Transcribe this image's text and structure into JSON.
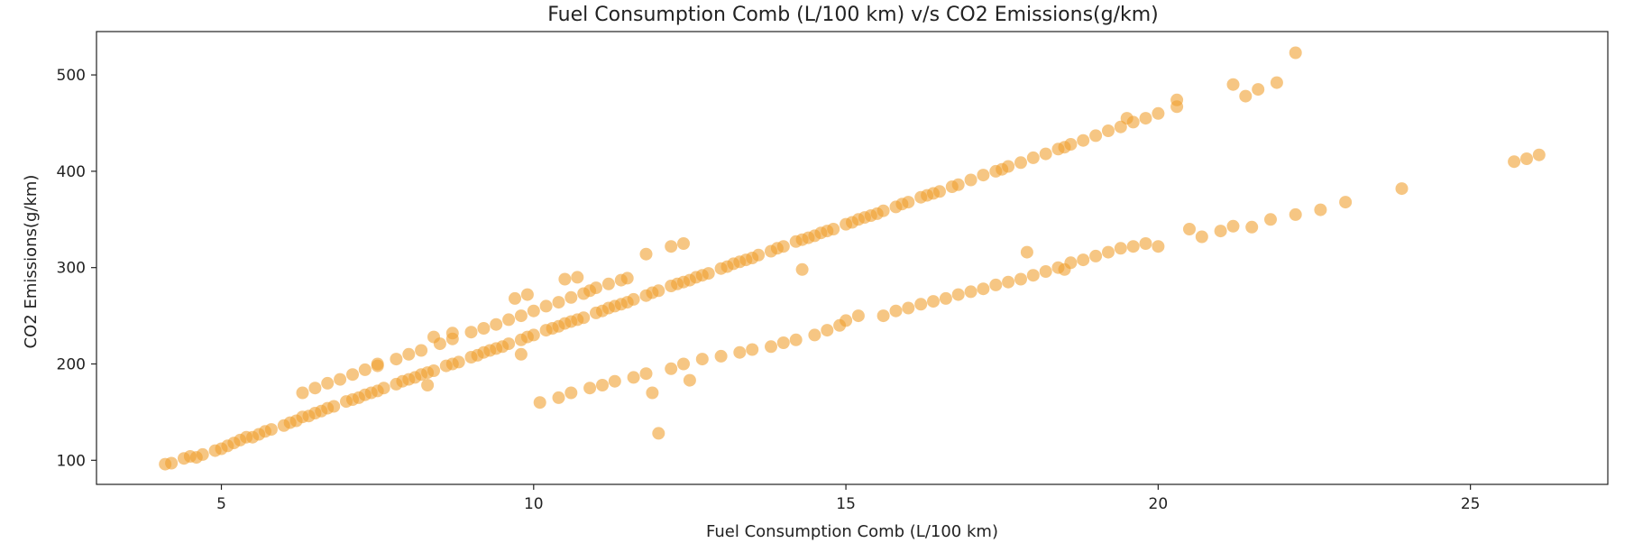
{
  "chart_data": {
    "type": "scatter",
    "title": "Fuel Consumption Comb (L/100 km) v/s CO2 Emissions(g/km)",
    "xlabel": "Fuel Consumption Comb (L/100 km)",
    "ylabel": "CO2 Emissions(g/km)",
    "xlim": [
      3,
      27.2
    ],
    "ylim": [
      75,
      545
    ],
    "xticks": [
      5,
      10,
      15,
      20,
      25
    ],
    "yticks": [
      100,
      200,
      300,
      400,
      500
    ],
    "grid": false,
    "legend": "none",
    "marker_color": "#f0a030",
    "marker_alpha": 0.6,
    "series": [
      {
        "points": [
          [
            4.1,
            96
          ],
          [
            4.2,
            97
          ],
          [
            4.4,
            102
          ],
          [
            4.5,
            104
          ],
          [
            4.7,
            106
          ],
          [
            4.9,
            110
          ],
          [
            5.0,
            112
          ],
          [
            5.1,
            115
          ],
          [
            5.2,
            118
          ],
          [
            5.3,
            121
          ],
          [
            5.5,
            124
          ],
          [
            5.6,
            127
          ],
          [
            5.7,
            130
          ],
          [
            5.8,
            132
          ],
          [
            6.0,
            136
          ],
          [
            6.1,
            139
          ],
          [
            6.2,
            141
          ],
          [
            6.4,
            146
          ],
          [
            6.5,
            149
          ],
          [
            6.6,
            151
          ],
          [
            6.7,
            154
          ],
          [
            6.8,
            156
          ],
          [
            7.0,
            161
          ],
          [
            7.1,
            163
          ],
          [
            7.2,
            165
          ],
          [
            7.4,
            170
          ],
          [
            7.5,
            172
          ],
          [
            7.6,
            175
          ],
          [
            7.8,
            179
          ],
          [
            7.9,
            182
          ],
          [
            8.0,
            184
          ],
          [
            8.2,
            189
          ],
          [
            8.3,
            191
          ],
          [
            8.4,
            193
          ],
          [
            8.6,
            198
          ],
          [
            8.7,
            200
          ],
          [
            8.8,
            202
          ],
          [
            9.0,
            207
          ],
          [
            9.1,
            209
          ],
          [
            9.2,
            212
          ],
          [
            9.4,
            216
          ],
          [
            9.5,
            218
          ],
          [
            9.6,
            221
          ],
          [
            9.8,
            225
          ],
          [
            9.9,
            228
          ],
          [
            10.0,
            230
          ],
          [
            10.2,
            235
          ],
          [
            10.3,
            237
          ],
          [
            10.4,
            239
          ],
          [
            10.6,
            244
          ],
          [
            10.7,
            246
          ],
          [
            10.8,
            248
          ],
          [
            11.0,
            253
          ],
          [
            11.1,
            255
          ],
          [
            11.2,
            258
          ],
          [
            11.4,
            262
          ],
          [
            11.5,
            264
          ],
          [
            11.6,
            267
          ],
          [
            11.8,
            271
          ],
          [
            11.9,
            274
          ],
          [
            12.0,
            276
          ],
          [
            12.2,
            281
          ],
          [
            12.3,
            283
          ],
          [
            12.4,
            285
          ],
          [
            12.6,
            290
          ],
          [
            12.7,
            292
          ],
          [
            12.8,
            294
          ],
          [
            13.0,
            299
          ],
          [
            13.1,
            301
          ],
          [
            13.2,
            304
          ],
          [
            13.4,
            308
          ],
          [
            13.5,
            310
          ],
          [
            13.6,
            313
          ],
          [
            13.8,
            317
          ],
          [
            13.9,
            320
          ],
          [
            14.0,
            322
          ],
          [
            14.2,
            327
          ],
          [
            14.3,
            329
          ],
          [
            14.4,
            331
          ],
          [
            14.6,
            336
          ],
          [
            14.7,
            338
          ],
          [
            14.8,
            340
          ],
          [
            15.0,
            345
          ],
          [
            15.1,
            347
          ],
          [
            15.2,
            350
          ],
          [
            15.4,
            354
          ],
          [
            15.5,
            356
          ],
          [
            15.6,
            359
          ],
          [
            15.8,
            363
          ],
          [
            15.9,
            366
          ],
          [
            16.0,
            368
          ],
          [
            16.2,
            373
          ],
          [
            16.3,
            375
          ],
          [
            16.5,
            379
          ],
          [
            16.7,
            384
          ],
          [
            16.8,
            386
          ],
          [
            17.0,
            391
          ],
          [
            17.2,
            396
          ],
          [
            17.4,
            400
          ],
          [
            17.6,
            405
          ],
          [
            17.8,
            409
          ],
          [
            18.0,
            414
          ],
          [
            18.2,
            418
          ],
          [
            18.4,
            423
          ],
          [
            18.6,
            428
          ],
          [
            18.8,
            432
          ],
          [
            19.0,
            437
          ],
          [
            19.2,
            442
          ],
          [
            19.4,
            446
          ],
          [
            19.6,
            451
          ],
          [
            19.8,
            455
          ],
          [
            20.0,
            460
          ],
          [
            20.3,
            467
          ],
          [
            4.6,
            103
          ],
          [
            5.4,
            124
          ],
          [
            6.3,
            145
          ],
          [
            7.3,
            168
          ],
          [
            8.1,
            186
          ],
          [
            9.3,
            214
          ],
          [
            10.5,
            242
          ],
          [
            11.3,
            260
          ],
          [
            12.5,
            287
          ],
          [
            13.3,
            306
          ],
          [
            14.5,
            333
          ],
          [
            15.3,
            352
          ],
          [
            16.4,
            377
          ],
          [
            17.5,
            402
          ],
          [
            18.5,
            425
          ],
          [
            6.3,
            170
          ],
          [
            6.5,
            175
          ],
          [
            6.7,
            180
          ],
          [
            6.9,
            184
          ],
          [
            7.1,
            189
          ],
          [
            7.3,
            194
          ],
          [
            7.5,
            198
          ],
          [
            7.8,
            205
          ],
          [
            8.0,
            210
          ],
          [
            8.2,
            214
          ],
          [
            8.5,
            221
          ],
          [
            8.7,
            226
          ],
          [
            9.0,
            233
          ],
          [
            9.2,
            237
          ],
          [
            9.4,
            241
          ],
          [
            9.6,
            246
          ],
          [
            9.8,
            250
          ],
          [
            10.0,
            255
          ],
          [
            10.2,
            260
          ],
          [
            10.4,
            264
          ],
          [
            10.6,
            269
          ],
          [
            10.8,
            273
          ],
          [
            10.9,
            276
          ],
          [
            11.0,
            279
          ],
          [
            11.2,
            283
          ],
          [
            11.4,
            287
          ],
          [
            11.5,
            289
          ],
          [
            10.5,
            288
          ],
          [
            10.7,
            290
          ],
          [
            9.7,
            268
          ],
          [
            9.9,
            272
          ],
          [
            8.4,
            228
          ],
          [
            8.7,
            232
          ],
          [
            7.5,
            200
          ],
          [
            11.8,
            314
          ],
          [
            12.2,
            322
          ],
          [
            12.4,
            325
          ],
          [
            9.8,
            210
          ],
          [
            8.3,
            178
          ],
          [
            14.3,
            298
          ],
          [
            10.1,
            160
          ],
          [
            10.4,
            165
          ],
          [
            10.6,
            170
          ],
          [
            10.9,
            175
          ],
          [
            11.1,
            178
          ],
          [
            11.3,
            182
          ],
          [
            11.6,
            186
          ],
          [
            11.8,
            190
          ],
          [
            12.2,
            195
          ],
          [
            12.4,
            200
          ],
          [
            12.7,
            205
          ],
          [
            13.0,
            208
          ],
          [
            13.3,
            212
          ],
          [
            13.5,
            215
          ],
          [
            13.8,
            218
          ],
          [
            14.0,
            222
          ],
          [
            14.2,
            225
          ],
          [
            14.5,
            230
          ],
          [
            14.7,
            235
          ],
          [
            14.9,
            240
          ],
          [
            15.0,
            245
          ],
          [
            15.2,
            250
          ],
          [
            15.6,
            250
          ],
          [
            15.8,
            255
          ],
          [
            16.0,
            258
          ],
          [
            16.2,
            262
          ],
          [
            16.4,
            265
          ],
          [
            16.6,
            268
          ],
          [
            16.8,
            272
          ],
          [
            17.0,
            275
          ],
          [
            17.2,
            278
          ],
          [
            17.4,
            282
          ],
          [
            17.6,
            285
          ],
          [
            17.8,
            288
          ],
          [
            18.0,
            292
          ],
          [
            18.2,
            296
          ],
          [
            18.4,
            300
          ],
          [
            18.6,
            305
          ],
          [
            18.8,
            308
          ],
          [
            19.0,
            312
          ],
          [
            19.2,
            316
          ],
          [
            19.4,
            320
          ],
          [
            19.6,
            322
          ],
          [
            19.8,
            325
          ],
          [
            20.0,
            322
          ],
          [
            17.9,
            316
          ],
          [
            18.5,
            298
          ],
          [
            20.5,
            340
          ],
          [
            20.7,
            332
          ],
          [
            21.0,
            338
          ],
          [
            21.2,
            343
          ],
          [
            21.5,
            342
          ],
          [
            21.8,
            350
          ],
          [
            22.2,
            355
          ],
          [
            22.6,
            360
          ],
          [
            23.0,
            368
          ],
          [
            23.9,
            382
          ],
          [
            25.7,
            410
          ],
          [
            25.9,
            413
          ],
          [
            26.1,
            417
          ],
          [
            12.0,
            128
          ],
          [
            11.9,
            170
          ],
          [
            12.5,
            183
          ],
          [
            21.2,
            490
          ],
          [
            21.4,
            478
          ],
          [
            21.6,
            485
          ],
          [
            21.9,
            492
          ],
          [
            22.2,
            523
          ],
          [
            19.5,
            455
          ],
          [
            20.3,
            474
          ]
        ]
      }
    ]
  }
}
